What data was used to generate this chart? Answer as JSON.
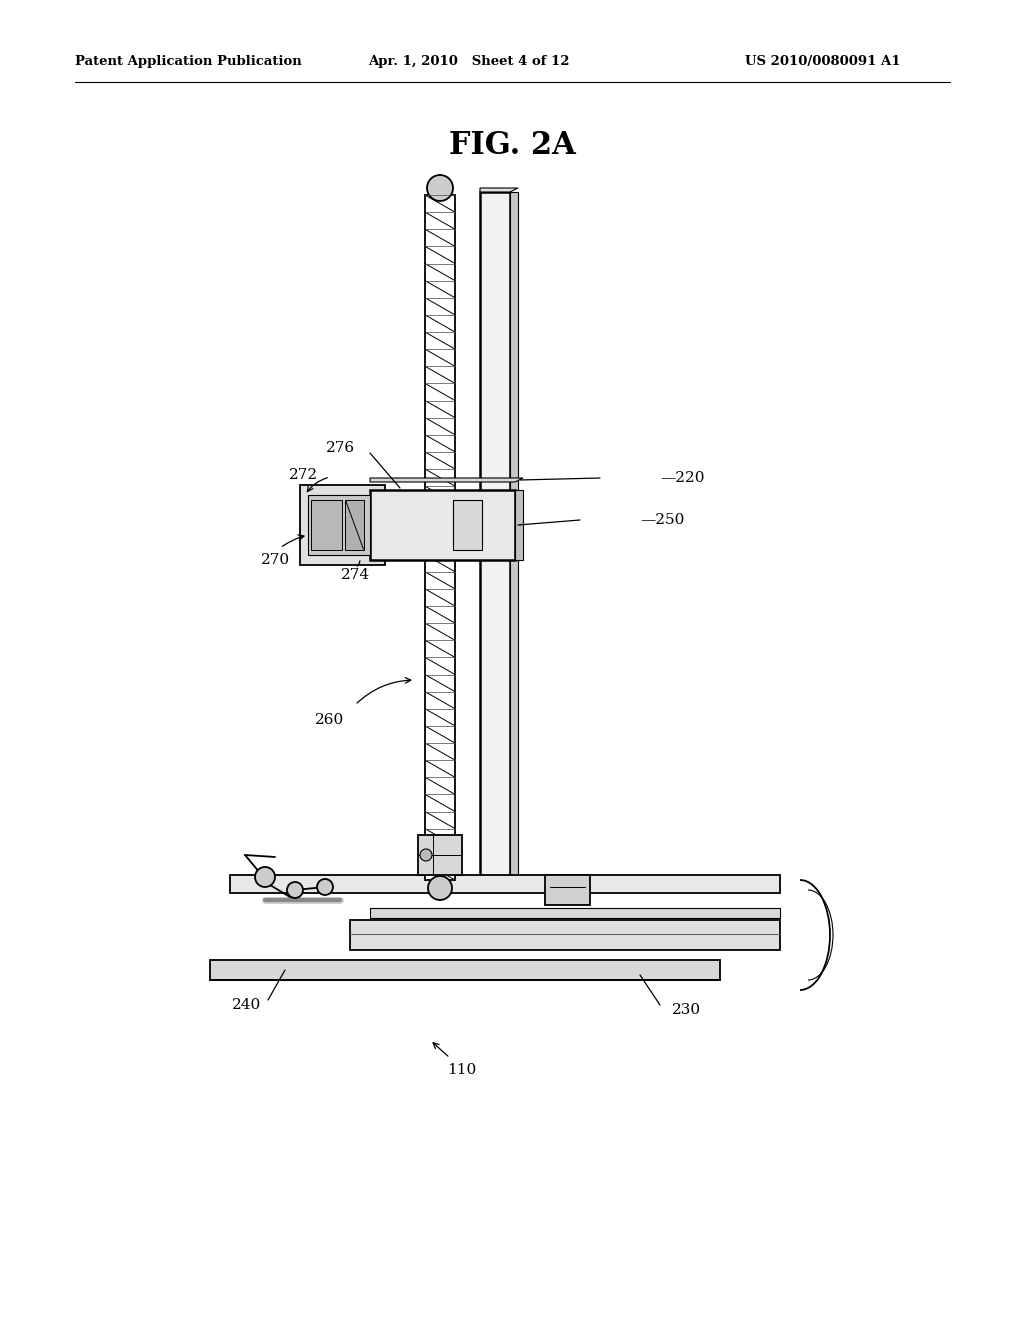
{
  "bg_color": "#ffffff",
  "header_left": "Patent Application Publication",
  "header_mid": "Apr. 1, 2010   Sheet 4 of 12",
  "header_right": "US 2010/0080091 A1",
  "fig_title": "FIG. 2A",
  "black": "#000000",
  "gray_light": "#e8e8e8",
  "gray_med": "#d0d0d0",
  "gray_dark": "#a0a0a0"
}
